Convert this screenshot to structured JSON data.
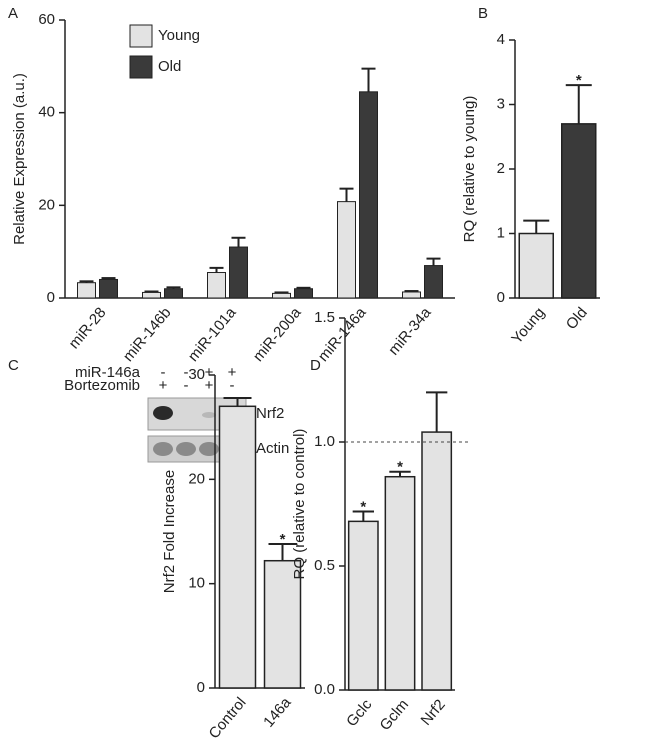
{
  "chart_data": [
    {
      "type": "bar",
      "panel": "A",
      "ylabel": "Relative Expression (a.u.)",
      "categories": [
        "miR-28",
        "miR-146b",
        "miR-101a",
        "miR-200a",
        "miR-146a",
        "miR-34a"
      ],
      "series": [
        {
          "name": "Young",
          "color": "#e3e3e3",
          "values": [
            3.3,
            1.2,
            5.5,
            1.0,
            20.8,
            1.3
          ],
          "errors": [
            0.3,
            0.2,
            1.0,
            0.2,
            2.8,
            0.2
          ]
        },
        {
          "name": "Old",
          "color": "#3a3a3a",
          "values": [
            4.0,
            2.0,
            11.0,
            2.0,
            44.5,
            7.0
          ],
          "errors": [
            0.3,
            0.3,
            2.0,
            0.2,
            5.0,
            1.5
          ]
        }
      ],
      "ylim": [
        0,
        60
      ],
      "yticks": [
        0,
        20,
        40,
        60
      ]
    },
    {
      "type": "bar",
      "panel": "B",
      "ylabel": "RQ (relative to young)",
      "categories": [
        "Young",
        "Old"
      ],
      "values": [
        1.0,
        2.7
      ],
      "errors": [
        0.2,
        0.6
      ],
      "colors": [
        "#e3e3e3",
        "#3a3a3a"
      ],
      "significance": [
        null,
        "*"
      ],
      "ylim": [
        0,
        4
      ],
      "yticks": [
        0,
        1,
        2,
        3,
        4
      ]
    },
    {
      "type": "bar",
      "panel": "C",
      "ylabel": "Nrf2 Fold Increase",
      "categories": [
        "Control",
        "146a"
      ],
      "values": [
        27.0,
        12.2
      ],
      "errors": [
        0.8,
        1.6
      ],
      "colors": [
        "#e3e3e3",
        "#e3e3e3"
      ],
      "significance": [
        null,
        "*"
      ],
      "ylim": [
        0,
        30
      ],
      "yticks": [
        0,
        10,
        20,
        30
      ],
      "inset": {
        "rows": [
          {
            "label": "miR-146a",
            "signs": [
              "-",
              "-",
              "+",
              "+"
            ]
          },
          {
            "label": "Bortezomib",
            "signs": [
              "+",
              "-",
              "+",
              "-"
            ]
          }
        ],
        "bands": [
          "Nrf2",
          "Actin"
        ]
      }
    },
    {
      "type": "bar",
      "panel": "D",
      "ylabel": "RQ (relative to control)",
      "categories": [
        "Gclc",
        "Gclm",
        "Nrf2"
      ],
      "values": [
        0.68,
        0.86,
        1.04
      ],
      "errors": [
        0.04,
        0.02,
        0.16
      ],
      "colors": [
        "#e3e3e3",
        "#e3e3e3",
        "#e3e3e3"
      ],
      "significance": [
        "*",
        "*",
        null
      ],
      "reference_line": 1.0,
      "ylim": [
        0,
        1.5
      ],
      "yticks": [
        {
          "value": 0,
          "label": "0.0"
        },
        0.5,
        {
          "value": 1,
          "label": "1.0"
        },
        1.5
      ]
    }
  ]
}
